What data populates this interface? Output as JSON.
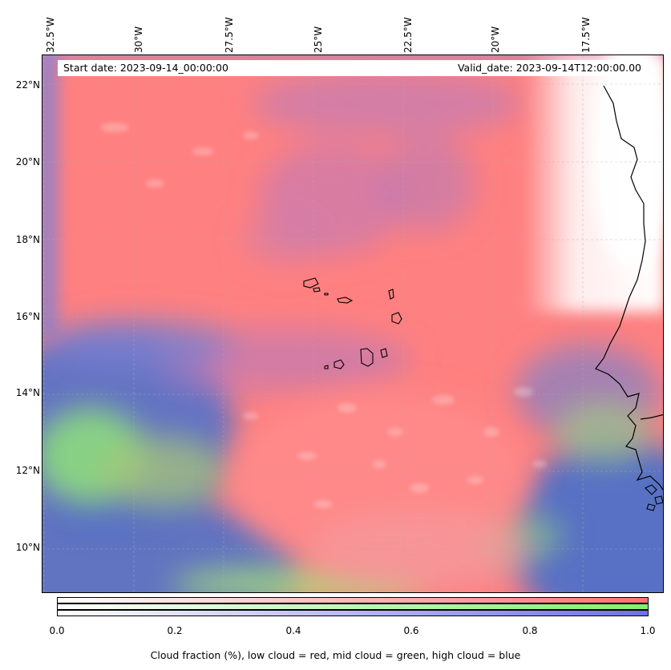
{
  "header": {
    "start_date": "Start date: 2023-09-14_00:00:00",
    "valid_date": "Valid_date: 2023-09-14T12:00:00.00"
  },
  "axes": {
    "lon_labels": [
      "32.5°W",
      "30°W",
      "27.5°W",
      "25°W",
      "22.5°W",
      "20°W",
      "17.5°W"
    ],
    "lat_labels": [
      "22°N",
      "20°N",
      "18°N",
      "16°N",
      "14°N",
      "12°N",
      "10°N"
    ]
  },
  "colorbar": {
    "ticks": [
      "0.0",
      "0.2",
      "0.4",
      "0.6",
      "0.8",
      "1.0"
    ],
    "label": "Cloud fraction (%), low cloud = red, mid cloud = green, high cloud = blue",
    "colors": {
      "low": "#ff7f7f",
      "mid": "#7fff7f",
      "high": "#7f7fff"
    }
  },
  "map": {
    "colors": {
      "low_cloud": "#ff8080",
      "mixed": "#c87ab0",
      "high_cloud": "#5c73c6",
      "mid_cloud": "#8ee27a",
      "clear": "#ffffff",
      "coast": "#000000"
    }
  }
}
